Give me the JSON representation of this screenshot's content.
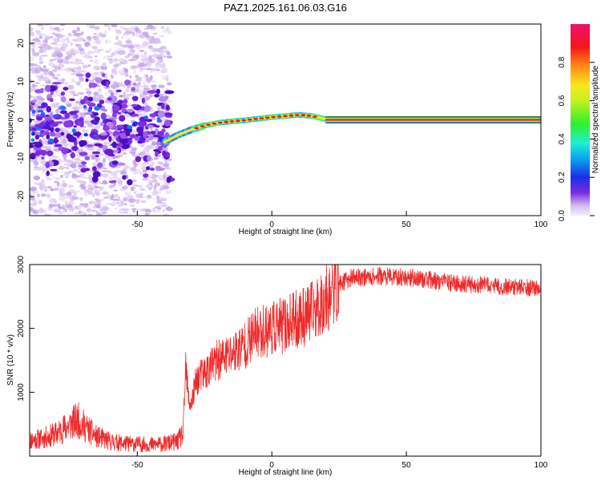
{
  "title": "PAZ1.2025.161.06.03.G16",
  "chart_data": [
    {
      "type": "heatmap",
      "xlabel": "Height of straight line (km)",
      "ylabel": "Frequency (Hz)",
      "xlim": [
        -90,
        100
      ],
      "ylim": [
        -25,
        25
      ],
      "xticks": [
        -50,
        0,
        50,
        100
      ],
      "yticks": [
        -20,
        -10,
        0,
        10,
        20
      ],
      "colorbar": {
        "label": "Normalized spectral amplitude",
        "range": [
          0,
          1
        ],
        "ticks": [
          0.0,
          0.2,
          0.4,
          0.6,
          0.8
        ]
      },
      "ridge": {
        "x": [
          -40,
          -35,
          -30,
          -25,
          -20,
          -15,
          -10,
          -5,
          0,
          5,
          10,
          15,
          20,
          50,
          100
        ],
        "y": [
          -5.8,
          -4.0,
          -2.6,
          -1.5,
          -0.8,
          -0.4,
          -0.1,
          0.3,
          0.7,
          1.0,
          1.3,
          1.0,
          0.2,
          0.0,
          0.0
        ]
      },
      "grid": false
    },
    {
      "type": "line",
      "xlabel": "Height of straight line (km)",
      "ylabel": "SNR (10 * v/v)",
      "xlim": [
        -90,
        100
      ],
      "ylim": [
        0,
        3000
      ],
      "xticks": [
        -50,
        0,
        50,
        100
      ],
      "yticks": [
        1000,
        2000,
        3000
      ],
      "series": [
        {
          "color": "#ee2a2a",
          "x": [
            -90,
            -85,
            -80,
            -75,
            -72,
            -70,
            -65,
            -60,
            -55,
            -50,
            -45,
            -40,
            -35,
            -33,
            -32,
            -31,
            -30,
            -28,
            -25,
            -20,
            -15,
            -10,
            -5,
            0,
            5,
            10,
            15,
            20,
            25,
            30,
            35,
            40,
            45,
            50,
            55,
            60,
            65,
            70,
            75,
            80,
            85,
            90,
            95,
            100
          ],
          "y": [
            250,
            280,
            350,
            500,
            560,
            480,
            300,
            230,
            200,
            190,
            180,
            190,
            230,
            350,
            1400,
            900,
            800,
            1200,
            1300,
            1500,
            1600,
            1750,
            1950,
            2000,
            2050,
            2150,
            2250,
            2450,
            2700,
            2800,
            2800,
            2820,
            2800,
            2800,
            2780,
            2750,
            2720,
            2700,
            2680,
            2680,
            2650,
            2650,
            2640,
            2620
          ]
        }
      ],
      "grid": false
    }
  ]
}
